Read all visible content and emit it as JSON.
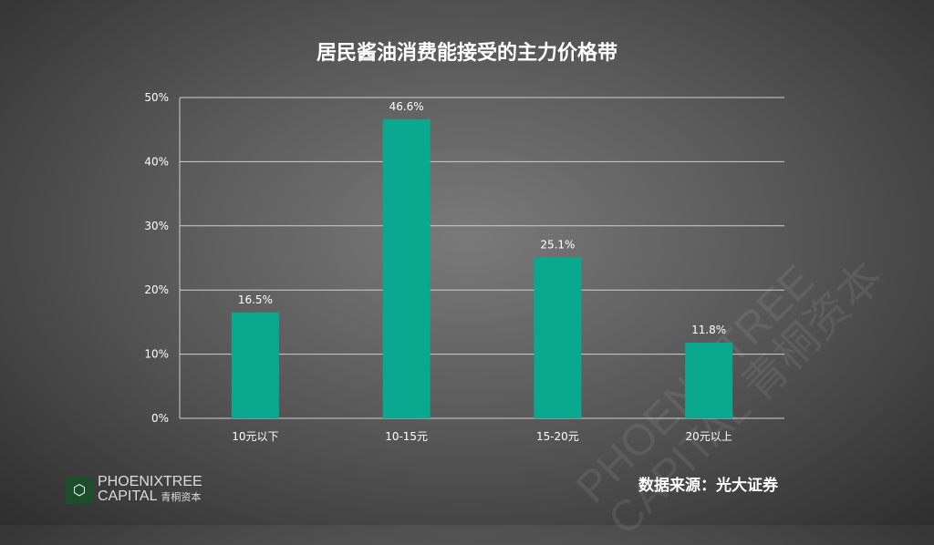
{
  "chart_data": {
    "type": "bar",
    "title": "居民酱油消费能接受的主力价格带",
    "categories": [
      "10元以下",
      "10-15元",
      "15-20元",
      "20元以上"
    ],
    "values": [
      16.5,
      46.6,
      25.1,
      11.8
    ],
    "data_labels": [
      "16.5%",
      "46.6%",
      "25.1%",
      "11.8%"
    ],
    "yticks": [
      "0%",
      "10%",
      "20%",
      "30%",
      "40%",
      "50%"
    ],
    "ylim": [
      0,
      50
    ],
    "grid": true,
    "bar_color": "#0aa98f"
  },
  "source": "数据来源：光大证券",
  "logo": {
    "line1": "PHOENIXTREE",
    "line2": "CAPITAL",
    "cn": "青桐资本"
  }
}
